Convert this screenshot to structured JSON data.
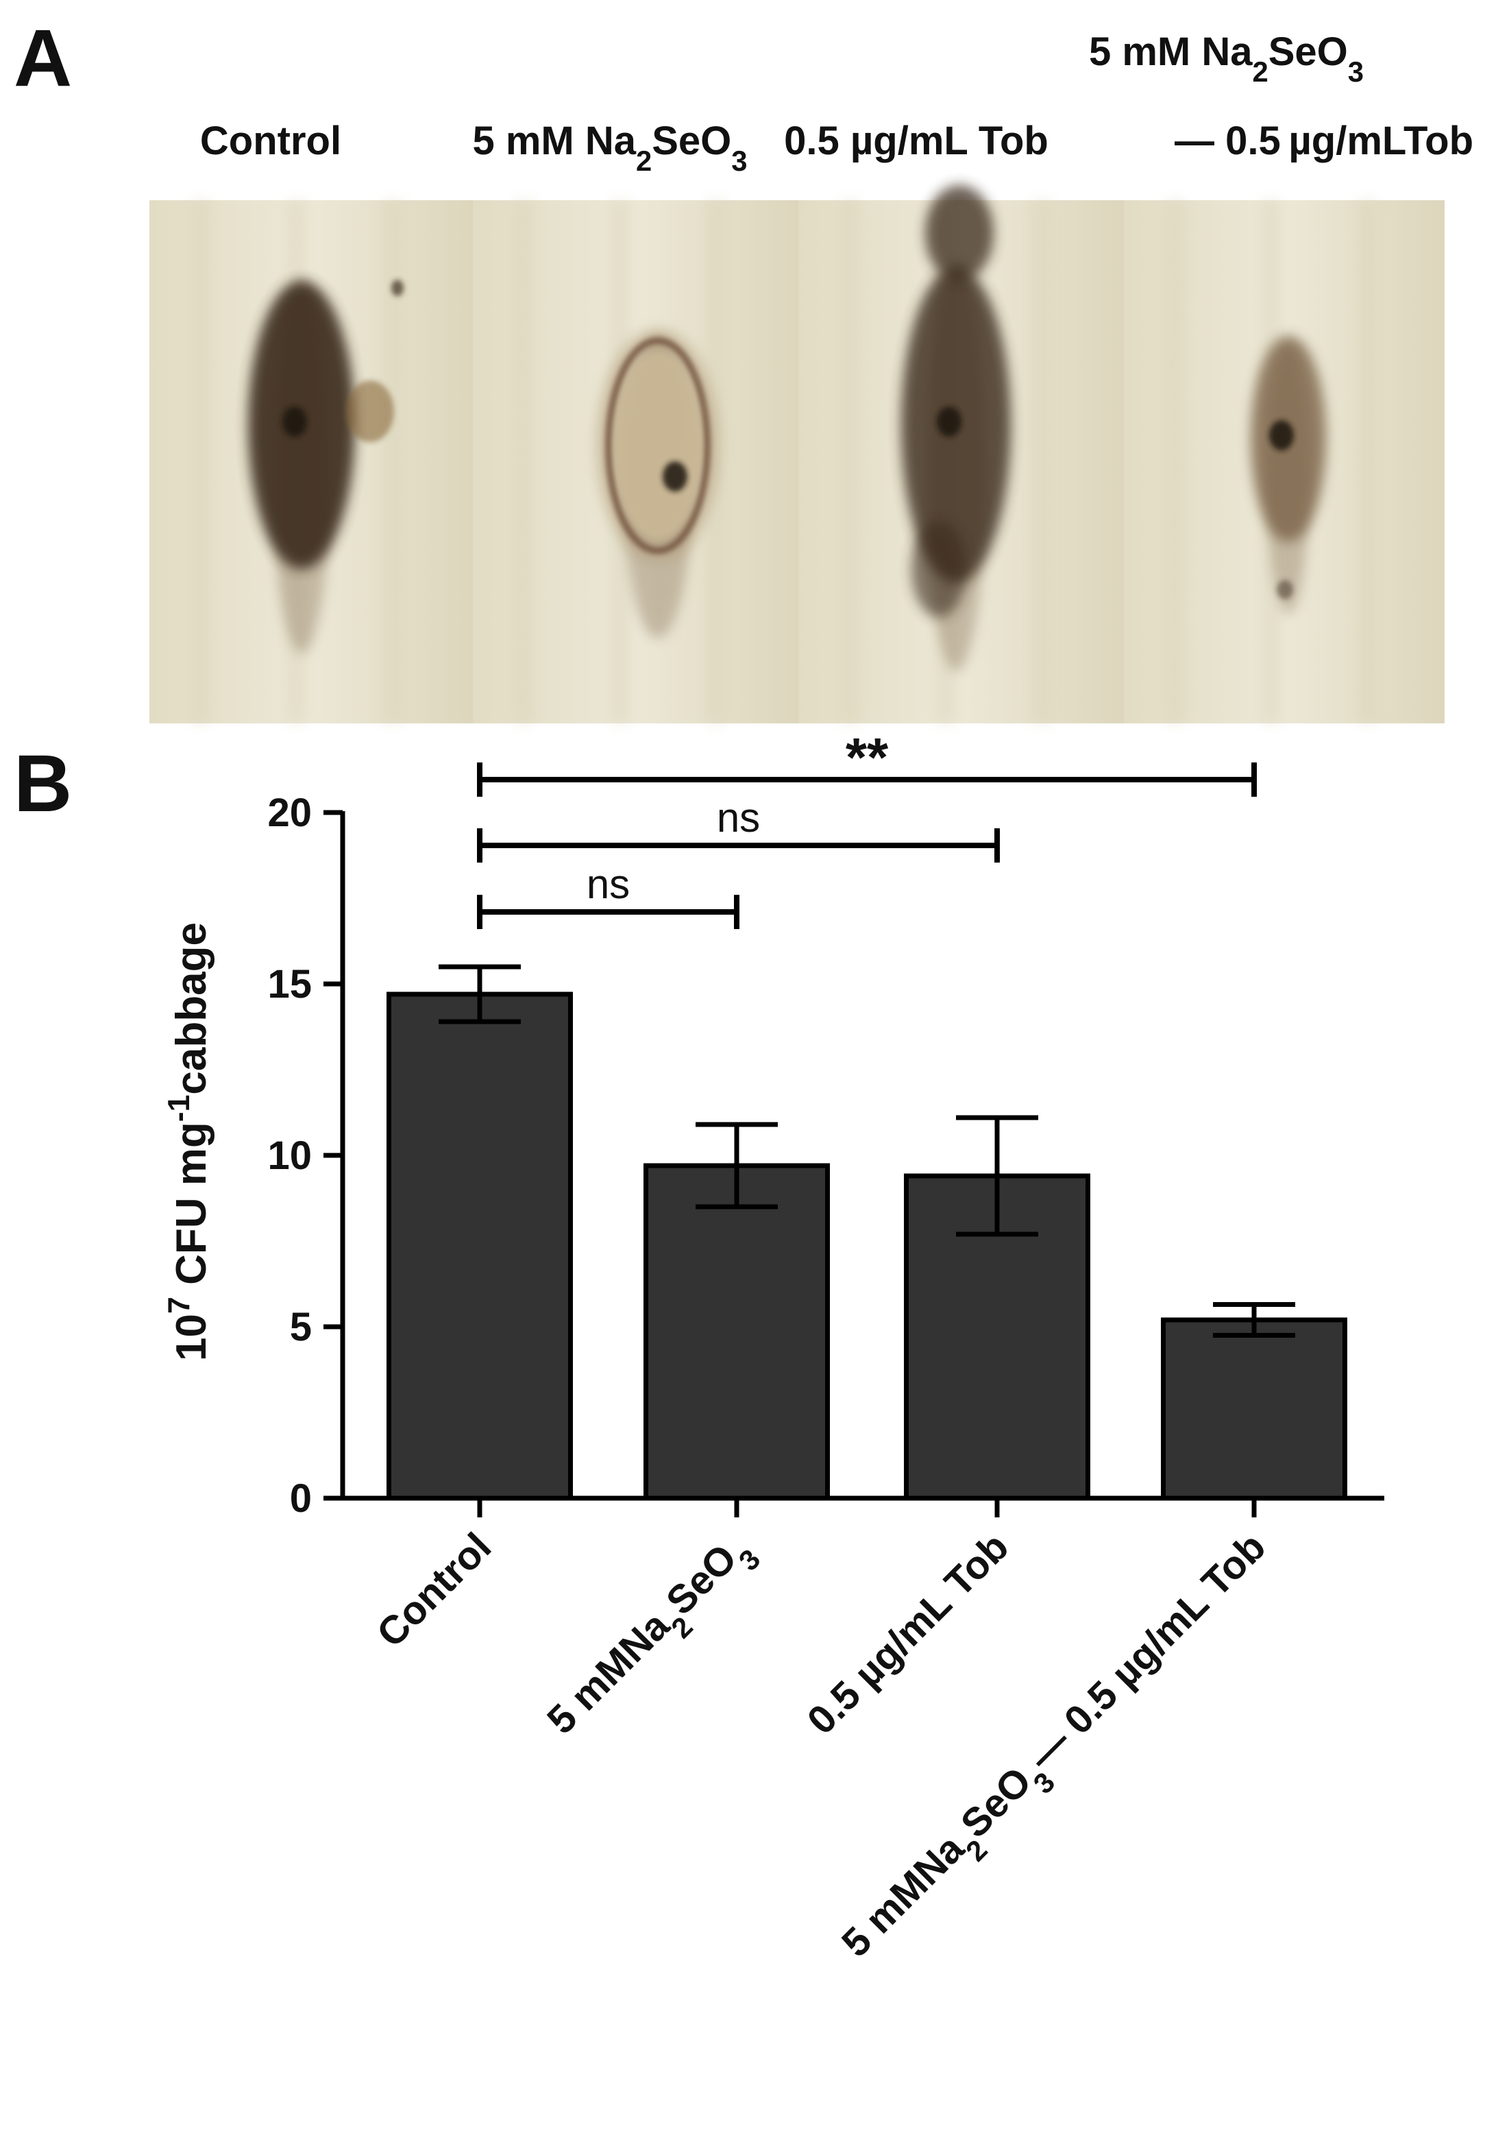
{
  "panel_a": {
    "letter": "A",
    "labels": [
      {
        "parts": [
          {
            "t": "Control"
          }
        ]
      },
      {
        "parts": [
          {
            "t": "5 mM Na"
          },
          {
            "t": "2",
            "sub": true
          },
          {
            "t": "SeO"
          },
          {
            "t": "3",
            "sub": true
          }
        ]
      },
      {
        "parts": [
          {
            "t": "0.5 µg/mL Tob"
          }
        ]
      },
      {
        "parts": [
          {
            "t": "5 mM Na"
          },
          {
            "t": "2",
            "sub": true
          },
          {
            "t": "SeO"
          },
          {
            "t": "3",
            "sub": true
          }
        ],
        "line2": "— 0.5 µg/mLTob"
      }
    ],
    "colors": {
      "tissue": "#e9e4cf",
      "tissue_shade": "#d8d2b8",
      "lesion": "#3a2a1e",
      "lesion_soft": "#7a6246",
      "pale_lesion": "#b5a07e"
    }
  },
  "chart_data": {
    "panel_letter": "B",
    "type": "bar",
    "categories": [
      "Control",
      "5 mMNa2SeO3",
      "0.5 µg/mL Tob",
      "5 mMNa2SeO3— 0.5 µg/mLTob"
    ],
    "category_parts": [
      [
        {
          "t": "Control"
        }
      ],
      [
        {
          "t": "5 mMNa"
        },
        {
          "t": "2",
          "sub": true
        },
        {
          "t": "SeO"
        },
        {
          "t": "3",
          "sub": true
        }
      ],
      [
        {
          "t": "0.5 µg/mL Tob"
        }
      ],
      [
        {
          "t": "5 mMNa"
        },
        {
          "t": "2",
          "sub": true
        },
        {
          "t": "SeO"
        },
        {
          "t": "3",
          "sub": true
        },
        {
          "t": "— 0.5 µg/mL Tob"
        }
      ]
    ],
    "values": [
      14.7,
      9.7,
      9.4,
      5.2
    ],
    "errors": [
      0.8,
      1.2,
      1.7,
      0.45
    ],
    "ylim": [
      0,
      20
    ],
    "yticks": [
      0,
      5,
      10,
      15,
      20
    ],
    "ylabel_parts": [
      {
        "t": "10"
      },
      {
        "t": "7",
        "sup": true
      },
      {
        "t": " CFU mg"
      },
      {
        "t": "-1",
        "sup": true
      },
      {
        "t": "cabbage"
      }
    ],
    "bar_color": "#333333",
    "significance": [
      {
        "from": 0,
        "to": 1,
        "label": "ns"
      },
      {
        "from": 0,
        "to": 2,
        "label": "ns"
      },
      {
        "from": 0,
        "to": 3,
        "label": "**"
      }
    ],
    "grid": false
  }
}
